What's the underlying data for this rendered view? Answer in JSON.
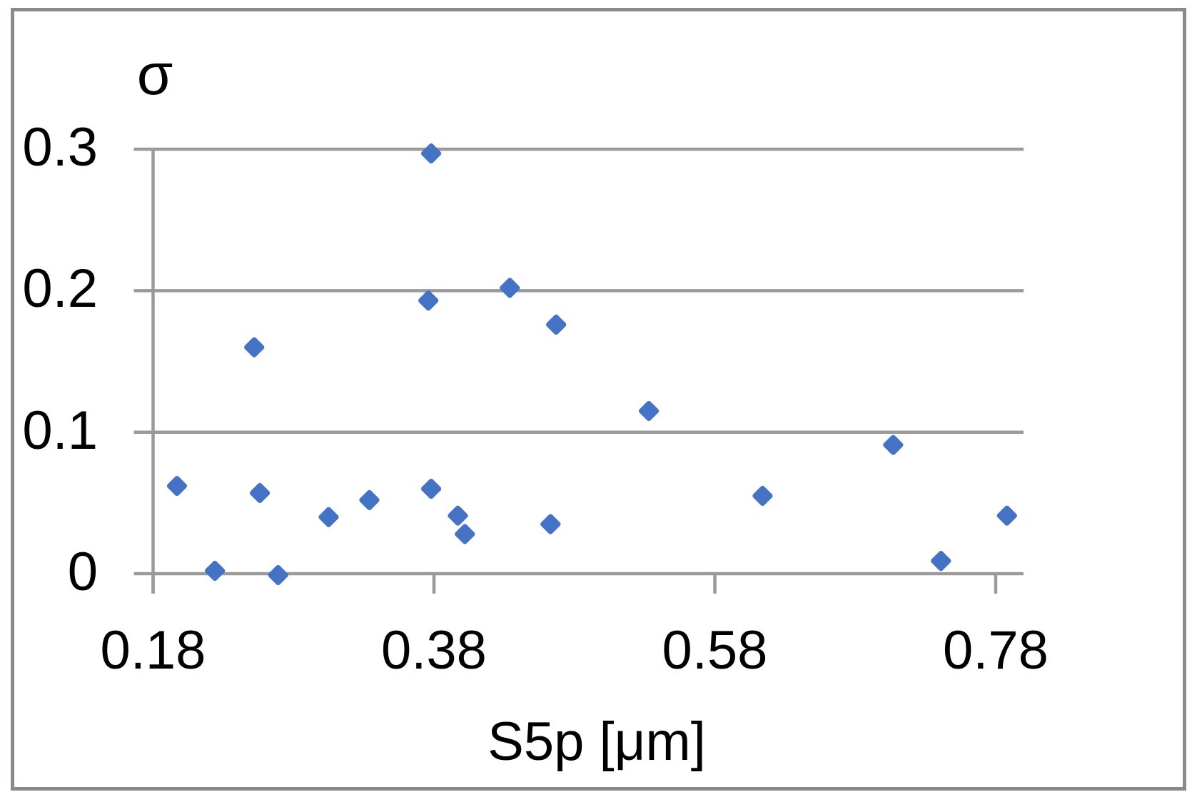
{
  "colors": {
    "marker": "#4472C4",
    "grid": "#9A9A9A",
    "border": "#8A8A8A",
    "text": "#000000",
    "background": "#FFFFFF"
  },
  "chart_data": {
    "type": "scatter",
    "title": "",
    "xlabel": "S5p [μm]",
    "ylabel": "σ",
    "xlim": [
      0.18,
      0.8
    ],
    "ylim": [
      0,
      0.3
    ],
    "x_ticks": [
      0.18,
      0.38,
      0.58,
      0.78
    ],
    "x_tick_labels": [
      "0.18",
      "0.38",
      "0.58",
      "0.78"
    ],
    "y_ticks": [
      0,
      0.1,
      0.2,
      0.3
    ],
    "y_tick_labels": [
      "0",
      "0.1",
      "0.2",
      "0.3"
    ],
    "grid": "horizontal",
    "legend": "none",
    "marker": {
      "shape": "diamond",
      "color": "#4472C4"
    },
    "series": [
      {
        "points": [
          [
            0.197,
            0.062
          ],
          [
            0.224,
            0.002
          ],
          [
            0.252,
            0.16
          ],
          [
            0.256,
            0.057
          ],
          [
            0.269,
            -0.001
          ],
          [
            0.305,
            0.04
          ],
          [
            0.334,
            0.052
          ],
          [
            0.376,
            0.193
          ],
          [
            0.378,
            0.297
          ],
          [
            0.378,
            0.06
          ],
          [
            0.397,
            0.041
          ],
          [
            0.402,
            0.028
          ],
          [
            0.434,
            0.202
          ],
          [
            0.463,
            0.035
          ],
          [
            0.467,
            0.176
          ],
          [
            0.533,
            0.115
          ],
          [
            0.614,
            0.055
          ],
          [
            0.707,
            0.091
          ],
          [
            0.741,
            0.009
          ],
          [
            0.788,
            0.041
          ]
        ]
      }
    ]
  }
}
